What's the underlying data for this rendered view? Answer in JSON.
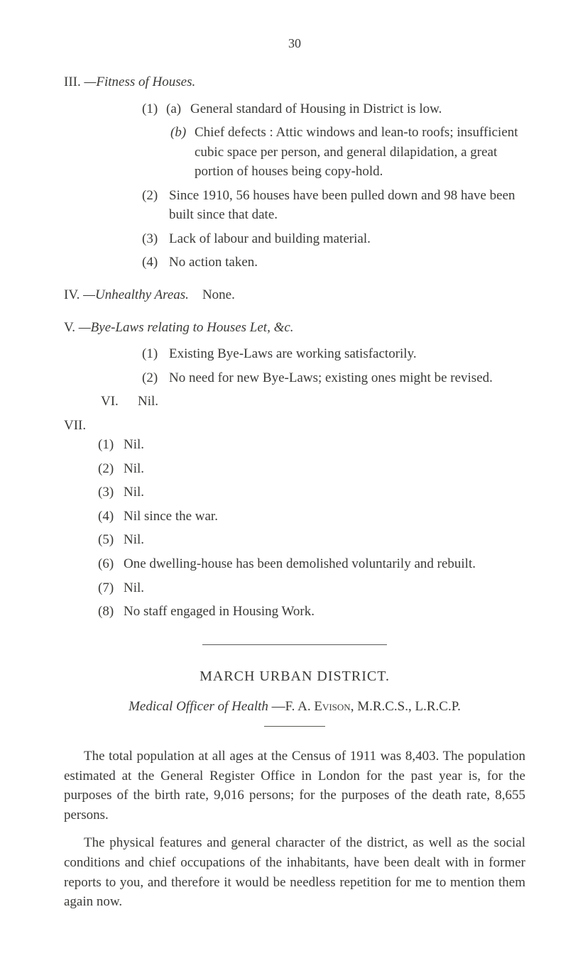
{
  "page_number": "30",
  "III": {
    "head_roman": "III.",
    "head_title": "—Fitness of Houses.",
    "item1_num": "(1)",
    "item1a_num": "(a)",
    "item1a_text": "General standard of Housing in District is low.",
    "item1b_num": "(b)",
    "item1b_text": "Chief defects : Attic windows and lean-to roofs; insufficient cubic space per person, and general dilapidation, a great portion of houses being copy-hold.",
    "item2_num": "(2)",
    "item2_text": "Since 1910, 56 houses have been pulled down and 98 have been built since that date.",
    "item3_num": "(3)",
    "item3_text": "Lack of labour and building material.",
    "item4_num": "(4)",
    "item4_text": "No action taken."
  },
  "IV": {
    "roman": "IV.",
    "title": "—Unhealthy Areas.",
    "tail": "None."
  },
  "V": {
    "roman": "V.",
    "title": "—Bye-Laws relating to Houses Let, &c.",
    "item1_num": "(1)",
    "item1_text": "Existing Bye-Laws are working satisfactorily.",
    "item2_num": "(2)",
    "item2_text": "No need for new Bye-Laws; existing ones might be revised."
  },
  "VI": {
    "roman": "VI.",
    "text": "Nil."
  },
  "VII": {
    "roman": "VII.",
    "i1_num": "(1)",
    "i1_text": "Nil.",
    "i2_num": "(2)",
    "i2_text": "Nil.",
    "i3_num": "(3)",
    "i3_text": "Nil.",
    "i4_num": "(4)",
    "i4_text": "Nil since the war.",
    "i5_num": "(5)",
    "i5_text": "Nil.",
    "i6_num": "(6)",
    "i6_text": "One dwelling-house has been demolished voluntarily and rebuilt.",
    "i7_num": "(7)",
    "i7_text": "Nil.",
    "i8_num": "(8)",
    "i8_text": "No staff engaged in Housing Work."
  },
  "district": {
    "title": "MARCH URBAN DISTRICT.",
    "officer_label": "Medical Officer of Health",
    "officer_name": "—F. A. Evison, M.R.C.S., L.R.C.P."
  },
  "para1": "The total population at all ages at the Census of 1911 was 8,403. The population estimated at the General Register Office in London for the past year is, for the purposes of the birth rate, 9,016 persons; for the purposes of the death rate, 8,655 persons.",
  "para2": "The physical features and general character of the district, as well as the social conditions and chief occupations of the inhabitants, have been dealt with in former reports to you, and therefore it would be needless repetition for me to mention them again now."
}
